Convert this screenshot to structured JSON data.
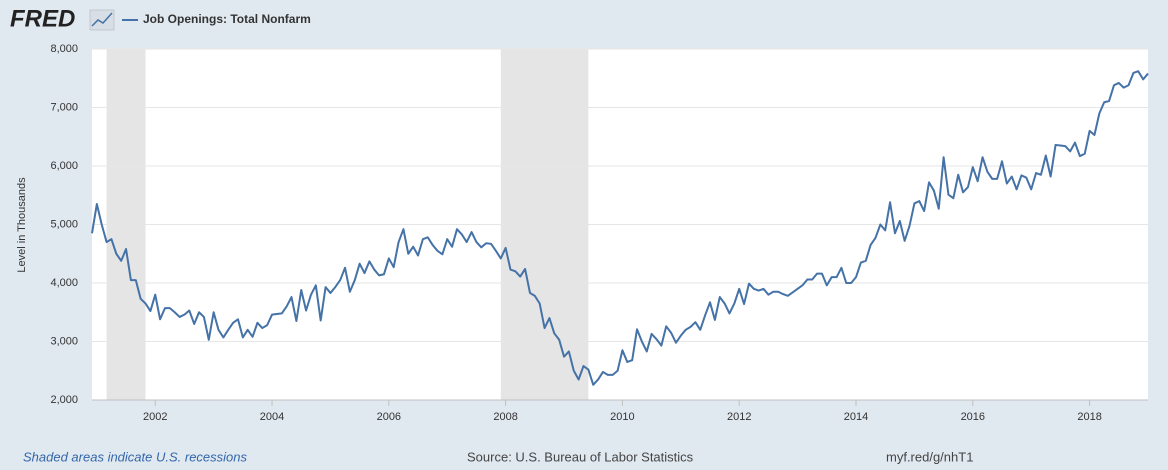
{
  "chart_data": {
    "type": "line",
    "logo": "FRED",
    "title": "Job Openings: Total Nonfarm",
    "ylabel": "Level in Thousands",
    "note": "Shaded areas indicate U.S. recessions",
    "source": "Source: U.S. Bureau of Labor Statistics",
    "link": "myf.red/g/nhT1",
    "xlim": [
      2000.917,
      2019.0
    ],
    "xticks": [
      2002,
      2004,
      2006,
      2008,
      2010,
      2012,
      2014,
      2016,
      2018
    ],
    "ylim": [
      2000,
      8000
    ],
    "yticks": [
      {
        "value": 2000,
        "label": "2,000"
      },
      {
        "value": 3000,
        "label": "3,000"
      },
      {
        "value": 4000,
        "label": "4,000"
      },
      {
        "value": 5000,
        "label": "5,000"
      },
      {
        "value": 6000,
        "label": "6,000"
      },
      {
        "value": 7000,
        "label": "7,000"
      },
      {
        "value": 8000,
        "label": "8,000"
      }
    ],
    "grid": true,
    "recessions": [
      [
        2001.167,
        2001.833
      ],
      [
        2007.917,
        2009.417
      ]
    ],
    "recession_color": "#e5e5e5",
    "x": [
      2000.917,
      2001,
      2001.083,
      2001.167,
      2001.25,
      2001.333,
      2001.417,
      2001.5,
      2001.583,
      2001.667,
      2001.75,
      2001.833,
      2001.917,
      2002,
      2002.083,
      2002.167,
      2002.25,
      2002.333,
      2002.417,
      2002.5,
      2002.583,
      2002.667,
      2002.75,
      2002.833,
      2002.917,
      2003,
      2003.083,
      2003.167,
      2003.25,
      2003.333,
      2003.417,
      2003.5,
      2003.583,
      2003.667,
      2003.75,
      2003.833,
      2003.917,
      2004,
      2004.083,
      2004.167,
      2004.25,
      2004.333,
      2004.417,
      2004.5,
      2004.583,
      2004.667,
      2004.75,
      2004.833,
      2004.917,
      2005,
      2005.083,
      2005.167,
      2005.25,
      2005.333,
      2005.417,
      2005.5,
      2005.583,
      2005.667,
      2005.75,
      2005.833,
      2005.917,
      2006,
      2006.083,
      2006.167,
      2006.25,
      2006.333,
      2006.417,
      2006.5,
      2006.583,
      2006.667,
      2006.75,
      2006.833,
      2006.917,
      2007,
      2007.083,
      2007.167,
      2007.25,
      2007.333,
      2007.417,
      2007.5,
      2007.583,
      2007.667,
      2007.75,
      2007.833,
      2007.917,
      2008,
      2008.083,
      2008.167,
      2008.25,
      2008.333,
      2008.417,
      2008.5,
      2008.583,
      2008.667,
      2008.75,
      2008.833,
      2008.917,
      2009,
      2009.083,
      2009.167,
      2009.25,
      2009.333,
      2009.417,
      2009.5,
      2009.583,
      2009.667,
      2009.75,
      2009.833,
      2009.917,
      2010,
      2010.083,
      2010.167,
      2010.25,
      2010.333,
      2010.417,
      2010.5,
      2010.583,
      2010.667,
      2010.75,
      2010.833,
      2010.917,
      2011,
      2011.083,
      2011.167,
      2011.25,
      2011.333,
      2011.417,
      2011.5,
      2011.583,
      2011.667,
      2011.75,
      2011.833,
      2011.917,
      2012,
      2012.083,
      2012.167,
      2012.25,
      2012.333,
      2012.417,
      2012.5,
      2012.583,
      2012.667,
      2012.75,
      2012.833,
      2012.917,
      2013,
      2013.083,
      2013.167,
      2013.25,
      2013.333,
      2013.417,
      2013.5,
      2013.583,
      2013.667,
      2013.75,
      2013.833,
      2013.917,
      2014,
      2014.083,
      2014.167,
      2014.25,
      2014.333,
      2014.417,
      2014.5,
      2014.583,
      2014.667,
      2014.75,
      2014.833,
      2014.917,
      2015,
      2015.083,
      2015.167,
      2015.25,
      2015.333,
      2015.417,
      2015.5,
      2015.583,
      2015.667,
      2015.75,
      2015.833,
      2015.917,
      2016,
      2016.083,
      2016.167,
      2016.25,
      2016.333,
      2016.417,
      2016.5,
      2016.583,
      2016.667,
      2016.75,
      2016.833,
      2016.917,
      2017,
      2017.083,
      2017.167,
      2017.25,
      2017.333,
      2017.417,
      2017.5,
      2017.583,
      2017.667,
      2017.75,
      2017.833,
      2017.917,
      2018,
      2018.083,
      2018.167,
      2018.25,
      2018.333,
      2018.417,
      2018.5,
      2018.583,
      2018.667,
      2018.75,
      2018.833,
      2018.917,
      2019
    ],
    "series": [
      {
        "name": "Job Openings: Total Nonfarm",
        "color": "#4572a7",
        "values": [
          4850,
          5350,
          5000,
          4700,
          4750,
          4500,
          4380,
          4580,
          4050,
          4050,
          3730,
          3650,
          3520,
          3800,
          3380,
          3570,
          3570,
          3500,
          3420,
          3460,
          3530,
          3300,
          3500,
          3420,
          3030,
          3500,
          3200,
          3070,
          3200,
          3320,
          3380,
          3070,
          3200,
          3080,
          3320,
          3230,
          3280,
          3460,
          3470,
          3480,
          3600,
          3760,
          3350,
          3880,
          3530,
          3800,
          3960,
          3360,
          3930,
          3830,
          3930,
          4050,
          4260,
          3850,
          4050,
          4330,
          4170,
          4370,
          4230,
          4130,
          4150,
          4420,
          4270,
          4700,
          4920,
          4500,
          4620,
          4470,
          4750,
          4780,
          4650,
          4550,
          4490,
          4750,
          4620,
          4920,
          4830,
          4700,
          4870,
          4700,
          4610,
          4680,
          4670,
          4550,
          4420,
          4600,
          4230,
          4200,
          4110,
          4240,
          3830,
          3780,
          3650,
          3230,
          3400,
          3140,
          3030,
          2740,
          2830,
          2500,
          2350,
          2580,
          2520,
          2260,
          2350,
          2480,
          2430,
          2430,
          2500,
          2850,
          2650,
          2680,
          3210,
          3000,
          2830,
          3130,
          3040,
          2930,
          3260,
          3150,
          2980,
          3100,
          3200,
          3250,
          3330,
          3200,
          3450,
          3670,
          3370,
          3760,
          3650,
          3480,
          3650,
          3900,
          3640,
          3990,
          3900,
          3870,
          3900,
          3800,
          3850,
          3850,
          3810,
          3780,
          3840,
          3900,
          3960,
          4060,
          4060,
          4160,
          4160,
          3960,
          4100,
          4100,
          4260,
          4000,
          4000,
          4100,
          4350,
          4380,
          4650,
          4770,
          5000,
          4900,
          5380,
          4850,
          5060,
          4720,
          4980,
          5360,
          5400,
          5230,
          5720,
          5580,
          5270,
          6150,
          5510,
          5450,
          5850,
          5550,
          5640,
          5980,
          5740,
          6150,
          5900,
          5780,
          5780,
          6080,
          5700,
          5820,
          5600,
          5840,
          5800,
          5600,
          5880,
          5850,
          6180,
          5820,
          6360,
          6350,
          6340,
          6250,
          6400,
          6170,
          6210,
          6600,
          6530,
          6900,
          7090,
          7110,
          7380,
          7420,
          7340,
          7380,
          7590,
          7620,
          7480,
          7580
        ]
      }
    ]
  }
}
